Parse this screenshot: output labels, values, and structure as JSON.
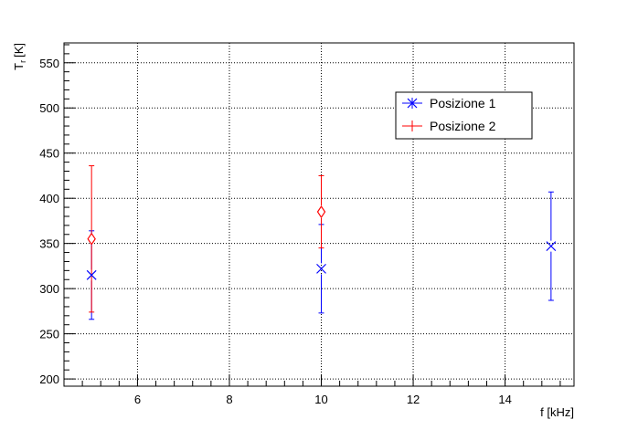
{
  "chart_data": {
    "type": "scatter",
    "title": "",
    "xlabel": "f [kHz]",
    "ylabel_main": "T",
    "ylabel_sub": "r",
    "ylabel_unit": "[K]",
    "xlim": [
      4.4,
      15.5
    ],
    "ylim": [
      192,
      572
    ],
    "x_ticks": [
      6,
      8,
      10,
      12,
      14
    ],
    "x_minor_step": 0.4,
    "y_ticks": [
      200,
      250,
      300,
      350,
      400,
      450,
      500,
      550
    ],
    "y_minor_step": 10,
    "grid": true,
    "legend_position": "top-right",
    "series": [
      {
        "name": "Posizione 1",
        "color": "#0000ff",
        "marker": "star",
        "points": [
          {
            "x": 5,
            "y": 315,
            "err": 49
          },
          {
            "x": 10,
            "y": 322,
            "err": 49
          },
          {
            "x": 15,
            "y": 347,
            "err": 60
          }
        ]
      },
      {
        "name": "Posizione 2",
        "color": "#ff0000",
        "marker": "open-diamond",
        "points": [
          {
            "x": 5,
            "y": 355,
            "err": 81
          },
          {
            "x": 10,
            "y": 385,
            "err": 40
          }
        ]
      }
    ]
  }
}
